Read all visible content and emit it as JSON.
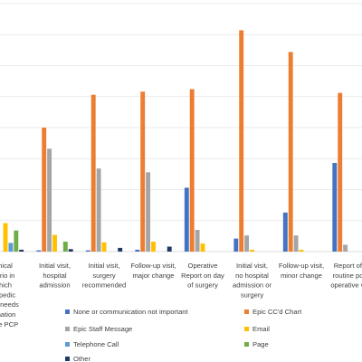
{
  "chart_data": {
    "type": "bar",
    "title": "",
    "xlabel": "",
    "ylabel": "",
    "ylim": [
      0,
      400
    ],
    "grid": true,
    "legend_position": "bottom",
    "colors": [
      "#4472C4",
      "#ED7D31",
      "#A5A5A5",
      "#FFC000",
      "#5B9BD5",
      "#70AD47",
      "#1F3864"
    ],
    "categories": [
      [
        "nical",
        "ario in",
        "hich",
        "opedic",
        "er needs",
        "mation",
        "the PCP"
      ],
      [
        "Initial visit,",
        "hospital",
        "admission"
      ],
      [
        "Initial visit,",
        "surgery",
        "recommended"
      ],
      [
        "Follow-up visit,",
        "major change"
      ],
      [
        "Operative",
        "Report on day",
        "of surgery"
      ],
      [
        "Initial visit,",
        "no hospital",
        "admission or",
        "surgery"
      ],
      [
        "Follow-up visit,",
        "minor change"
      ],
      [
        "Report of a",
        "routine post",
        "operative visi"
      ]
    ],
    "series": [
      {
        "name": "None or communication not important",
        "values": [
          15,
          2,
          2,
          3,
          103,
          21,
          63,
          143
        ]
      },
      {
        "name": "Epic CC'd Chart",
        "values": [
          0,
          200,
          253,
          258,
          262,
          357,
          322,
          256
        ]
      },
      {
        "name": "Epic Staff Message",
        "values": [
          0,
          166,
          134,
          128,
          35,
          26,
          26,
          11
        ]
      },
      {
        "name": "Email",
        "values": [
          46,
          27,
          15,
          16,
          13,
          3,
          3,
          0
        ]
      },
      {
        "name": "Telephone Call",
        "values": [
          14,
          0,
          0,
          0,
          0,
          0,
          0,
          0
        ]
      },
      {
        "name": "Page",
        "values": [
          34,
          16,
          0,
          0,
          0,
          0,
          0,
          0
        ]
      },
      {
        "name": "Other",
        "values": [
          3,
          4,
          6,
          8,
          0,
          0,
          0,
          0
        ]
      }
    ]
  }
}
